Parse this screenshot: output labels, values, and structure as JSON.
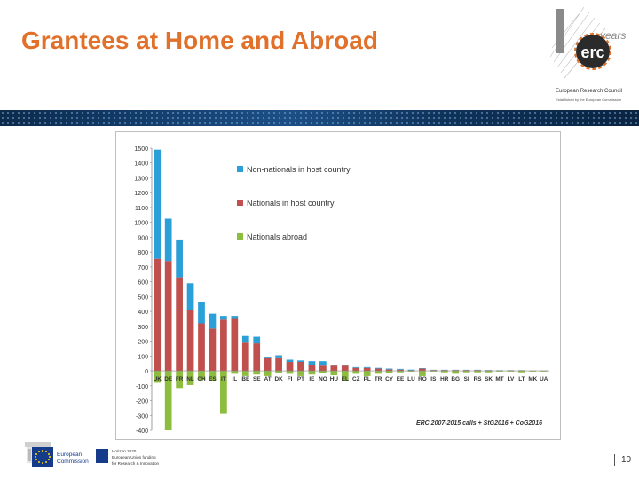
{
  "slide": {
    "title": "Grantees at Home and Abroad",
    "page_number": "10"
  },
  "logo": {
    "mark": "erc",
    "years": "years",
    "name": "European Research Council",
    "tagline": "Established by the European Commission"
  },
  "footer": {
    "ec_line1": "European",
    "ec_line2": "Commission",
    "h2020_line1": "Horizon 2020",
    "h2020_line2": "European Union funding",
    "h2020_line3": "for Research & Innovation"
  },
  "colors": {
    "title": "#e0702a",
    "non_nationals": "#2a9fd8",
    "nationals": "#c0504d",
    "abroad": "#8dbd3e"
  },
  "chart_data": {
    "type": "bar",
    "stacked": true,
    "categories": [
      "UK",
      "DE",
      "FR",
      "NL",
      "CH",
      "ES",
      "IT",
      "IL",
      "BE",
      "SE",
      "AT",
      "DK",
      "FI",
      "PT",
      "IE",
      "NO",
      "HU",
      "EL",
      "CZ",
      "PL",
      "TR",
      "CY",
      "EE",
      "LU",
      "RO",
      "IS",
      "HR",
      "BG",
      "SI",
      "RS",
      "SK",
      "MT",
      "LV",
      "LT",
      "MK",
      "UA"
    ],
    "series": [
      {
        "name": "Non-nationals in host country",
        "color": "#2a9fd8",
        "values": [
          735,
          285,
          255,
          180,
          145,
          100,
          25,
          20,
          45,
          45,
          10,
          20,
          15,
          10,
          25,
          30,
          5,
          5,
          5,
          5,
          5,
          5,
          5,
          5,
          3,
          2,
          2,
          2,
          2,
          2,
          2,
          2,
          1,
          1,
          1,
          1
        ]
      },
      {
        "name": "Nationals in host country",
        "color": "#c0504d",
        "values": [
          755,
          740,
          630,
          410,
          320,
          285,
          345,
          350,
          190,
          185,
          85,
          85,
          60,
          60,
          40,
          35,
          35,
          35,
          20,
          20,
          15,
          10,
          8,
          3,
          15,
          5,
          5,
          5,
          5,
          5,
          3,
          2,
          3,
          3,
          1,
          1
        ]
      },
      {
        "name": "Nationals abroad",
        "color": "#8dbd3e",
        "values": [
          -80,
          -400,
          -115,
          -95,
          -60,
          -65,
          -290,
          -20,
          -35,
          -25,
          -35,
          -15,
          -20,
          -35,
          -25,
          -15,
          -30,
          -70,
          -20,
          -35,
          -20,
          -15,
          -10,
          -5,
          -35,
          -5,
          -10,
          -20,
          -10,
          -10,
          -10,
          -5,
          -5,
          -10,
          -5,
          -5
        ]
      }
    ],
    "ylim": [
      -400,
      1500
    ],
    "yticks": [
      1500,
      1400,
      1300,
      1200,
      1100,
      1000,
      900,
      800,
      700,
      600,
      500,
      400,
      300,
      200,
      100,
      0,
      -100,
      -200,
      -300,
      -400
    ],
    "legend": "top-center",
    "grid": false,
    "annotation": "ERC 2007-2015 calls + StG2016 + CoG2016"
  }
}
